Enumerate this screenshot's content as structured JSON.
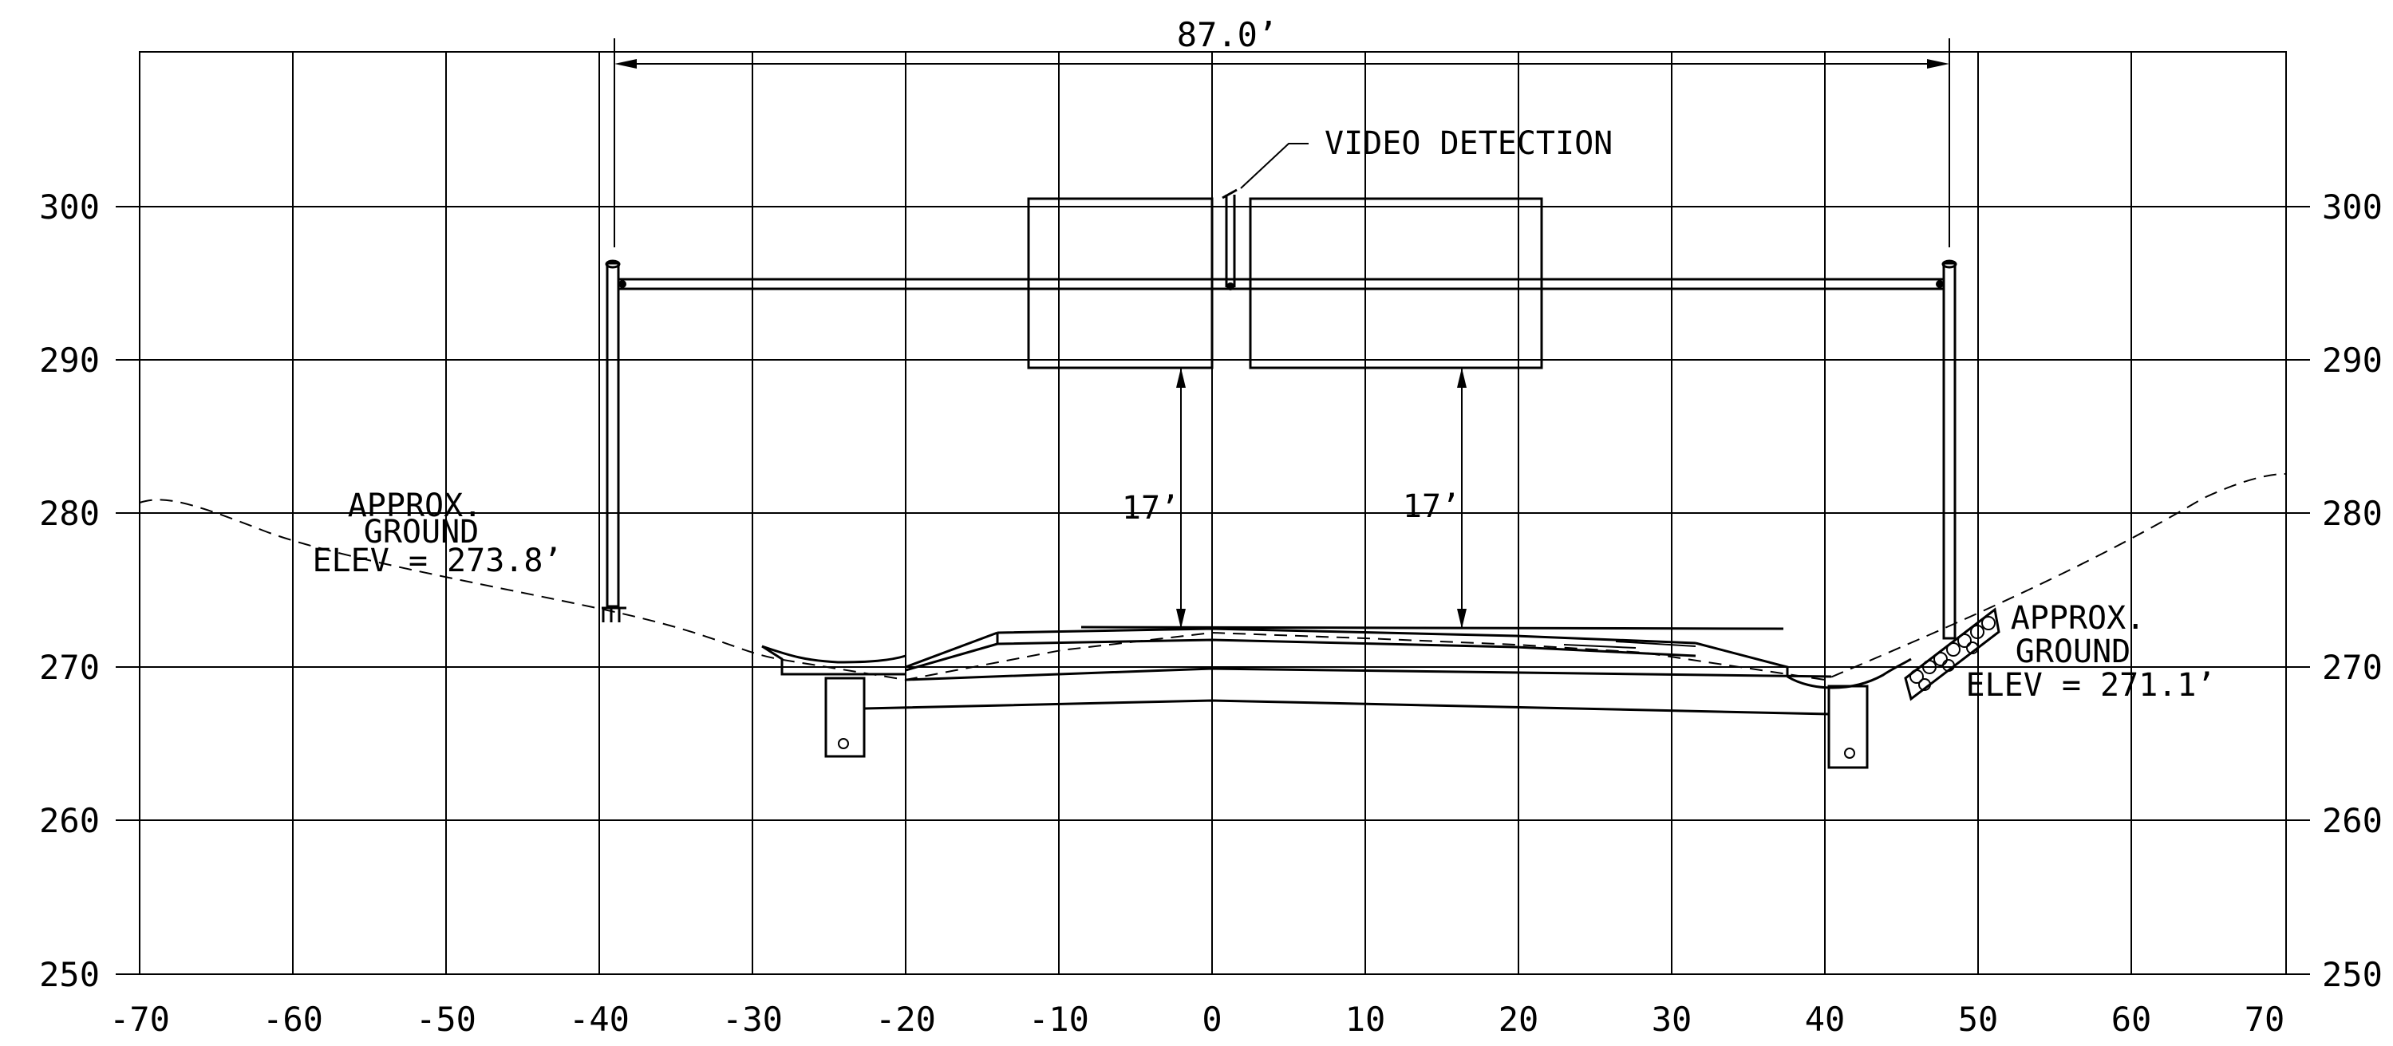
{
  "x_ticks": [
    "-70",
    "-60",
    "-50",
    "-40",
    "-30",
    "-20",
    "-10",
    "0",
    "10",
    "20",
    "30",
    "40",
    "50",
    "60",
    "70"
  ],
  "y_ticks": [
    "300",
    "290",
    "280",
    "270",
    "260",
    "250"
  ],
  "labels": {
    "span": "87.0’",
    "video_detection": "VIDEO DETECTION",
    "clearance_left": "17’",
    "clearance_right": "17’",
    "left_ground": [
      "APPROX.",
      "GROUND",
      "ELEV = 273.8’"
    ],
    "right_ground": [
      "APPROX.",
      "GROUND",
      "ELEV = 271.1’"
    ]
  },
  "structure": {
    "span_ft": 87.0,
    "min_clearance_ft": 17,
    "left_ground_elev_ft": 273.8,
    "right_ground_elev_ft": 271.1
  },
  "colors": {
    "line": "#000000",
    "background": "#ffffff"
  }
}
